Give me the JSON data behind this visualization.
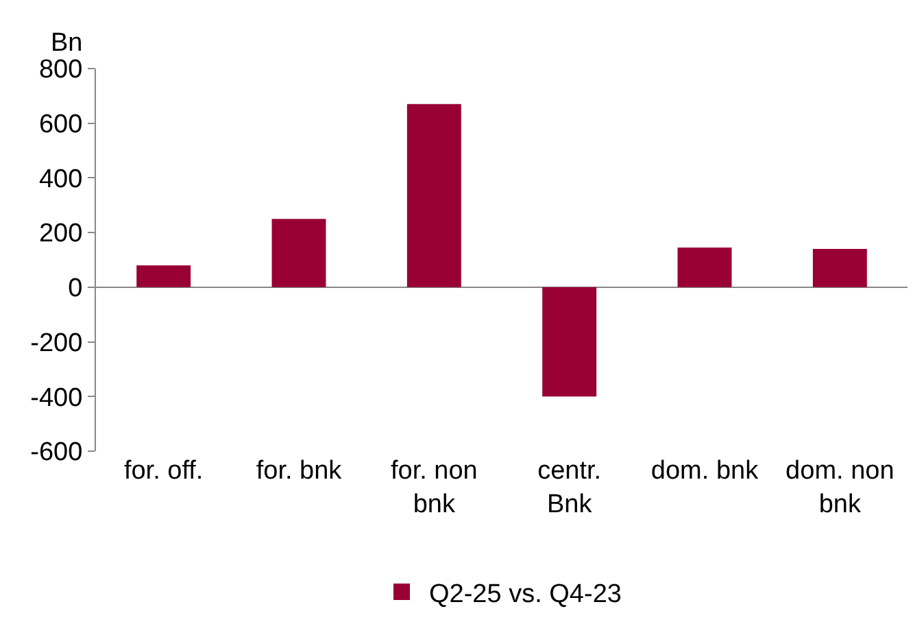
{
  "chart_data": {
    "type": "bar",
    "ylabel": "Bn",
    "categories": [
      "for. off.",
      "for. bnk",
      "for. non bnk",
      "centr. Bnk",
      "dom. bnk",
      "dom. non bnk"
    ],
    "series": [
      {
        "name": "Q2-25 vs. Q4-23",
        "color": "#990033",
        "values": [
          80,
          250,
          670,
          -400,
          145,
          140
        ]
      }
    ],
    "ylim": [
      -600,
      800
    ],
    "yticks": [
      -600,
      -400,
      -200,
      0,
      200,
      400,
      600,
      800
    ],
    "legend": "bottom"
  }
}
